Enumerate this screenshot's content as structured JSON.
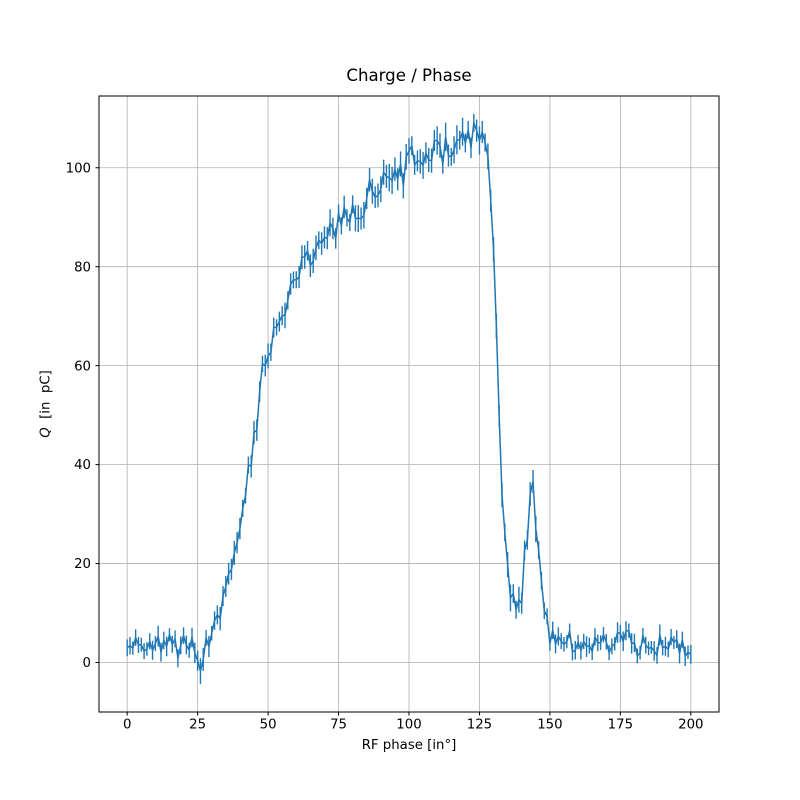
{
  "chart_data": {
    "type": "line",
    "subtype": "errorbar",
    "title": "Charge / Phase",
    "xlabel": "RF phase [in°]",
    "ylabel": "Q  [in  pC]",
    "ylabel_parts": {
      "italic": "Q",
      "rest": "  [in  pC]"
    },
    "xlim": [
      -10,
      210
    ],
    "ylim": [
      -10,
      114.5
    ],
    "x_ticks": [
      0,
      25,
      50,
      75,
      100,
      125,
      150,
      175,
      200
    ],
    "y_ticks": [
      0,
      20,
      40,
      60,
      80,
      100
    ],
    "grid": true,
    "legend": false,
    "line_color": "#1f77b4",
    "grid_color": "#b0b0b0",
    "axis_color": "#000000",
    "background_color": "#ffffff",
    "x_start": 0,
    "x_end": 200,
    "x_step": 1,
    "noise_seed": 11,
    "envelope_columns": [
      "x_deg",
      "q_mean_pC",
      "q_errorbar_pC",
      "q_scatter_sd_pC"
    ],
    "envelope_points": [
      [
        0,
        4.2,
        1.7,
        1.4
      ],
      [
        6,
        4.0,
        1.7,
        1.4
      ],
      [
        12,
        4.0,
        1.7,
        1.4
      ],
      [
        18,
        3.8,
        1.7,
        1.4
      ],
      [
        23,
        3.2,
        1.7,
        1.3
      ],
      [
        25,
        -0.8,
        2.2,
        0.9
      ],
      [
        26,
        -1.0,
        2.2,
        0.9
      ],
      [
        27.5,
        3.0,
        1.8,
        1.2
      ],
      [
        30,
        6.0,
        1.8,
        1.2
      ],
      [
        33,
        10,
        1.9,
        1.4
      ],
      [
        36,
        16,
        2.0,
        1.5
      ],
      [
        39,
        25,
        2.0,
        1.5
      ],
      [
        42,
        35,
        2.0,
        1.6
      ],
      [
        45,
        47,
        2.0,
        1.6
      ],
      [
        48,
        57,
        2.1,
        1.6
      ],
      [
        51,
        64,
        2.1,
        1.6
      ],
      [
        54,
        70,
        2.1,
        1.6
      ],
      [
        58,
        75,
        2.1,
        1.6
      ],
      [
        62,
        79,
        2.1,
        1.6
      ],
      [
        67,
        83,
        2.2,
        1.7
      ],
      [
        72,
        86.5,
        2.2,
        1.7
      ],
      [
        78,
        90,
        2.2,
        1.7
      ],
      [
        84,
        93,
        2.2,
        1.7
      ],
      [
        90,
        96,
        2.3,
        1.7
      ],
      [
        96,
        99,
        2.3,
        1.8
      ],
      [
        102,
        101,
        2.3,
        1.8
      ],
      [
        108,
        103,
        2.4,
        1.8
      ],
      [
        114,
        104.5,
        2.4,
        1.8
      ],
      [
        120,
        105,
        2.4,
        1.8
      ],
      [
        125,
        105.5,
        2.4,
        1.8
      ],
      [
        127,
        105,
        2.4,
        1.6
      ],
      [
        128,
        101,
        2.3,
        1.5
      ],
      [
        129.5,
        92,
        2.3,
        1.5
      ],
      [
        131,
        70,
        2.3,
        2.0
      ],
      [
        132,
        50,
        2.3,
        2.0
      ],
      [
        133,
        37,
        2.3,
        2.0
      ],
      [
        134,
        26,
        2.2,
        1.8
      ],
      [
        135.5,
        16,
        2.2,
        1.6
      ],
      [
        137,
        11,
        2.2,
        1.4
      ],
      [
        138.5,
        9,
        2.2,
        1.4
      ],
      [
        140,
        13,
        2.2,
        1.6
      ],
      [
        141.5,
        22,
        2.2,
        1.8
      ],
      [
        143,
        34,
        2.3,
        1.8
      ],
      [
        144,
        36.5,
        2.3,
        1.6
      ],
      [
        145,
        30,
        2.2,
        1.8
      ],
      [
        146.5,
        20,
        2.2,
        1.8
      ],
      [
        148,
        10,
        2.0,
        1.5
      ],
      [
        149.5,
        5.5,
        1.8,
        1.3
      ],
      [
        152,
        4.0,
        1.7,
        1.3
      ],
      [
        158,
        3.6,
        1.7,
        1.3
      ],
      [
        165,
        3.8,
        1.7,
        1.3
      ],
      [
        172,
        3.5,
        1.7,
        1.3
      ],
      [
        180,
        3.8,
        1.7,
        1.3
      ],
      [
        188,
        3.5,
        1.7,
        1.3
      ],
      [
        195,
        3.6,
        1.7,
        1.3
      ],
      [
        200,
        3.2,
        1.7,
        1.3
      ]
    ]
  }
}
